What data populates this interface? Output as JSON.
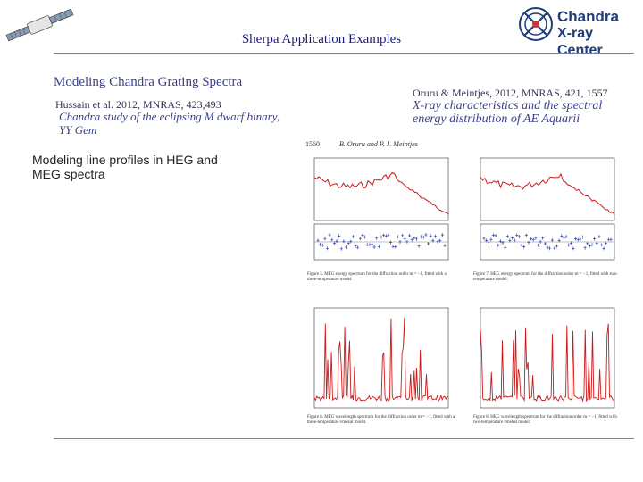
{
  "slide": {
    "title": "Sherpa Application Examples",
    "logo_line1": "Chandra",
    "logo_line2": "X-ray Center",
    "left_heading": "Modeling Chandra Grating Spectra",
    "left_citation": "Hussain et al. 2012, MNRAS, 423,493",
    "left_paper_title": "Chandra study of the eclipsing M dwarf binary, YY Gem",
    "left_body": "Modeling line profiles in HEG and MEG spectra",
    "right_citation": "Oruru & Meintjes, 2012, MNRAS, 421, 1557",
    "right_paper_title": "X-ray characteristics and the spectral energy distribution of AE Aquarii"
  },
  "paper": {
    "page_number": "1560",
    "authors": "B. Oruru and P. J. Meintjes",
    "fig5_caption": "Figure 5. MEG energy spectrum for the diffraction order m = −1, fitted with a three-temperature model.",
    "fig7_caption": "Figure 7. HEG energy spectrum for the diffraction order m = −1, fitted with two-temperature model.",
    "fig6_caption": "Figure 6. MEG wavelength spectrum for the diffraction order m = −1, fitted with a three-temperature vmekal model.",
    "fig8_caption": "Figure 8. HEG wavelength spectrum for the diffraction order m = −1, fitted with two-temperature vmekal model."
  },
  "colors": {
    "title": "#1a1a7a",
    "accent": "#3a3f8a",
    "rule": "#7a7fb0",
    "model_line": "#cc1a1a",
    "residuals": "#3344aa"
  }
}
